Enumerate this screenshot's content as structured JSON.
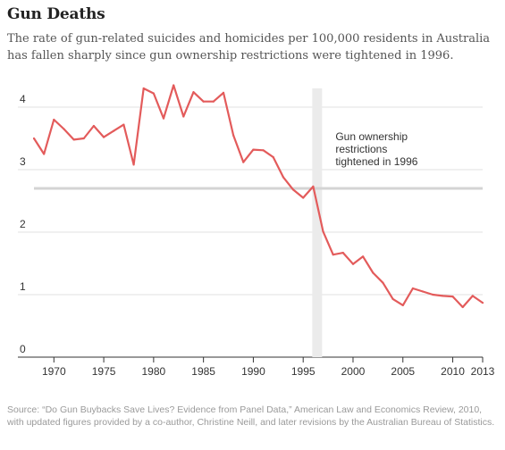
{
  "header": {
    "title": "Gun Deaths",
    "subtitle": "The rate of gun-related suicides and homicides per 100,000 residents in Australia has fallen sharply since gun ownership restrictions were tightened in 1996."
  },
  "footer": {
    "source": "Source: “Do Gun Buybacks Save Lives? Evidence from Panel Data,” American Law and Economics Review, 2010, with updated figures provided by a co-author, Christine Neill, and later revisions by the Australian Bureau of Statistics."
  },
  "chart_data": {
    "type": "line",
    "title": "Gun Deaths",
    "xlabel": "",
    "ylabel": "",
    "xlim": [
      1968,
      2013
    ],
    "ylim": [
      0,
      4.4
    ],
    "x_ticks": [
      "1970",
      "1975",
      "1980",
      "1985",
      "1990",
      "1995",
      "2000",
      "2005",
      "2010",
      "2013"
    ],
    "y_ticks": [
      "0",
      "1",
      "2",
      "3",
      "4"
    ],
    "grid": true,
    "line_color": "#e35b5b",
    "annotation": {
      "year": 1996,
      "text_lines": [
        "Gun ownership",
        "restrictions",
        "tightened in 1996"
      ],
      "reference_value": 2.7
    },
    "series": [
      {
        "x": [
          1968,
          1969,
          1970,
          1971,
          1972,
          1973,
          1974,
          1975,
          1976,
          1977,
          1978,
          1979,
          1980,
          1981,
          1982,
          1983,
          1984,
          1985,
          1986,
          1987,
          1988,
          1989,
          1990,
          1991,
          1992,
          1993,
          1994,
          1995,
          1996,
          1997,
          1998,
          1999,
          2000,
          2001,
          2002,
          2003,
          2004,
          2005,
          2006,
          2007,
          2008,
          2009,
          2010,
          2011,
          2012,
          2013
        ],
        "values": [
          3.5,
          3.25,
          3.8,
          3.65,
          3.48,
          3.5,
          3.7,
          3.52,
          3.62,
          3.72,
          3.08,
          4.3,
          4.22,
          3.82,
          4.35,
          3.85,
          4.24,
          4.09,
          4.09,
          4.23,
          3.55,
          3.12,
          3.32,
          3.31,
          3.2,
          2.88,
          2.68,
          2.55,
          2.73,
          2.01,
          1.64,
          1.67,
          1.49,
          1.61,
          1.35,
          1.19,
          0.93,
          0.83,
          1.1,
          1.05,
          1.0,
          0.98,
          0.97,
          0.8,
          0.98,
          0.87
        ]
      }
    ]
  }
}
